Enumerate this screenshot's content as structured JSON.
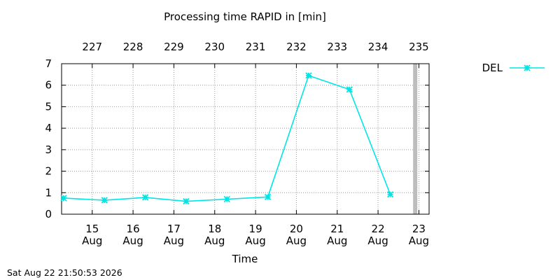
{
  "chart_data": {
    "type": "line",
    "title": "Processing time RAPID in [min]",
    "xlabel": "Time",
    "ylabel": "",
    "ylim": [
      0,
      7
    ],
    "yticks": [
      "0",
      "1",
      "2",
      "3",
      "4",
      "5",
      "6",
      "7"
    ],
    "xlim": [
      14.25,
      23.25
    ],
    "bottom_ticks": [
      {
        "x": 15,
        "day": "15",
        "month": "Aug"
      },
      {
        "x": 16,
        "day": "16",
        "month": "Aug"
      },
      {
        "x": 17,
        "day": "17",
        "month": "Aug"
      },
      {
        "x": 18,
        "day": "18",
        "month": "Aug"
      },
      {
        "x": 19,
        "day": "19",
        "month": "Aug"
      },
      {
        "x": 20,
        "day": "20",
        "month": "Aug"
      },
      {
        "x": 21,
        "day": "21",
        "month": "Aug"
      },
      {
        "x": 22,
        "day": "22",
        "month": "Aug"
      },
      {
        "x": 23,
        "day": "23",
        "month": "Aug"
      }
    ],
    "top_ticks": [
      {
        "x": 15,
        "label": "227"
      },
      {
        "x": 16,
        "label": "228"
      },
      {
        "x": 17,
        "label": "229"
      },
      {
        "x": 18,
        "label": "230"
      },
      {
        "x": 19,
        "label": "231"
      },
      {
        "x": 20,
        "label": "232"
      },
      {
        "x": 21,
        "label": "233"
      },
      {
        "x": 22,
        "label": "234"
      },
      {
        "x": 23,
        "label": "235"
      }
    ],
    "grid": true,
    "legend_position": "top-right outside",
    "current_time_x": 22.91,
    "series": [
      {
        "name": "DEL",
        "color": "#00e5e5",
        "marker": "x-star",
        "x": [
          14.3,
          15.3,
          16.3,
          17.3,
          18.3,
          19.3,
          20.3,
          21.3,
          22.3
        ],
        "y": [
          0.75,
          0.65,
          0.78,
          0.6,
          0.7,
          0.8,
          6.45,
          5.8,
          0.92
        ]
      }
    ]
  },
  "footer": {
    "timestamp": "Sat Aug 22 21:50:53 2026"
  }
}
